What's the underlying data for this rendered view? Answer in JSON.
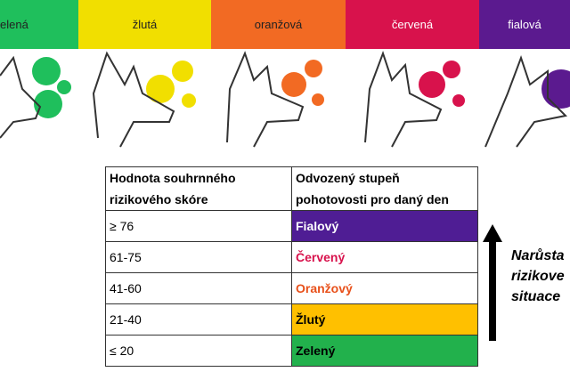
{
  "banner": {
    "labels": [
      "elená",
      "žlutá",
      "oranžová",
      "červená",
      "fialová"
    ]
  },
  "table": {
    "header": [
      [
        "Hodnota souhrnného",
        "rizikového skóre"
      ],
      [
        "Odvozený stupeň",
        "pohotovosti pro daný den"
      ]
    ],
    "rows": [
      [
        "≥ 76",
        "Fialový"
      ],
      [
        "61-75",
        "Červený"
      ],
      [
        "41-60",
        "Oranžový"
      ],
      [
        "21-40",
        "Žlutý"
      ],
      [
        "≤ 20",
        "Zelený"
      ]
    ]
  },
  "side_text": [
    "Narůsta",
    "rizikove",
    "situace"
  ]
}
